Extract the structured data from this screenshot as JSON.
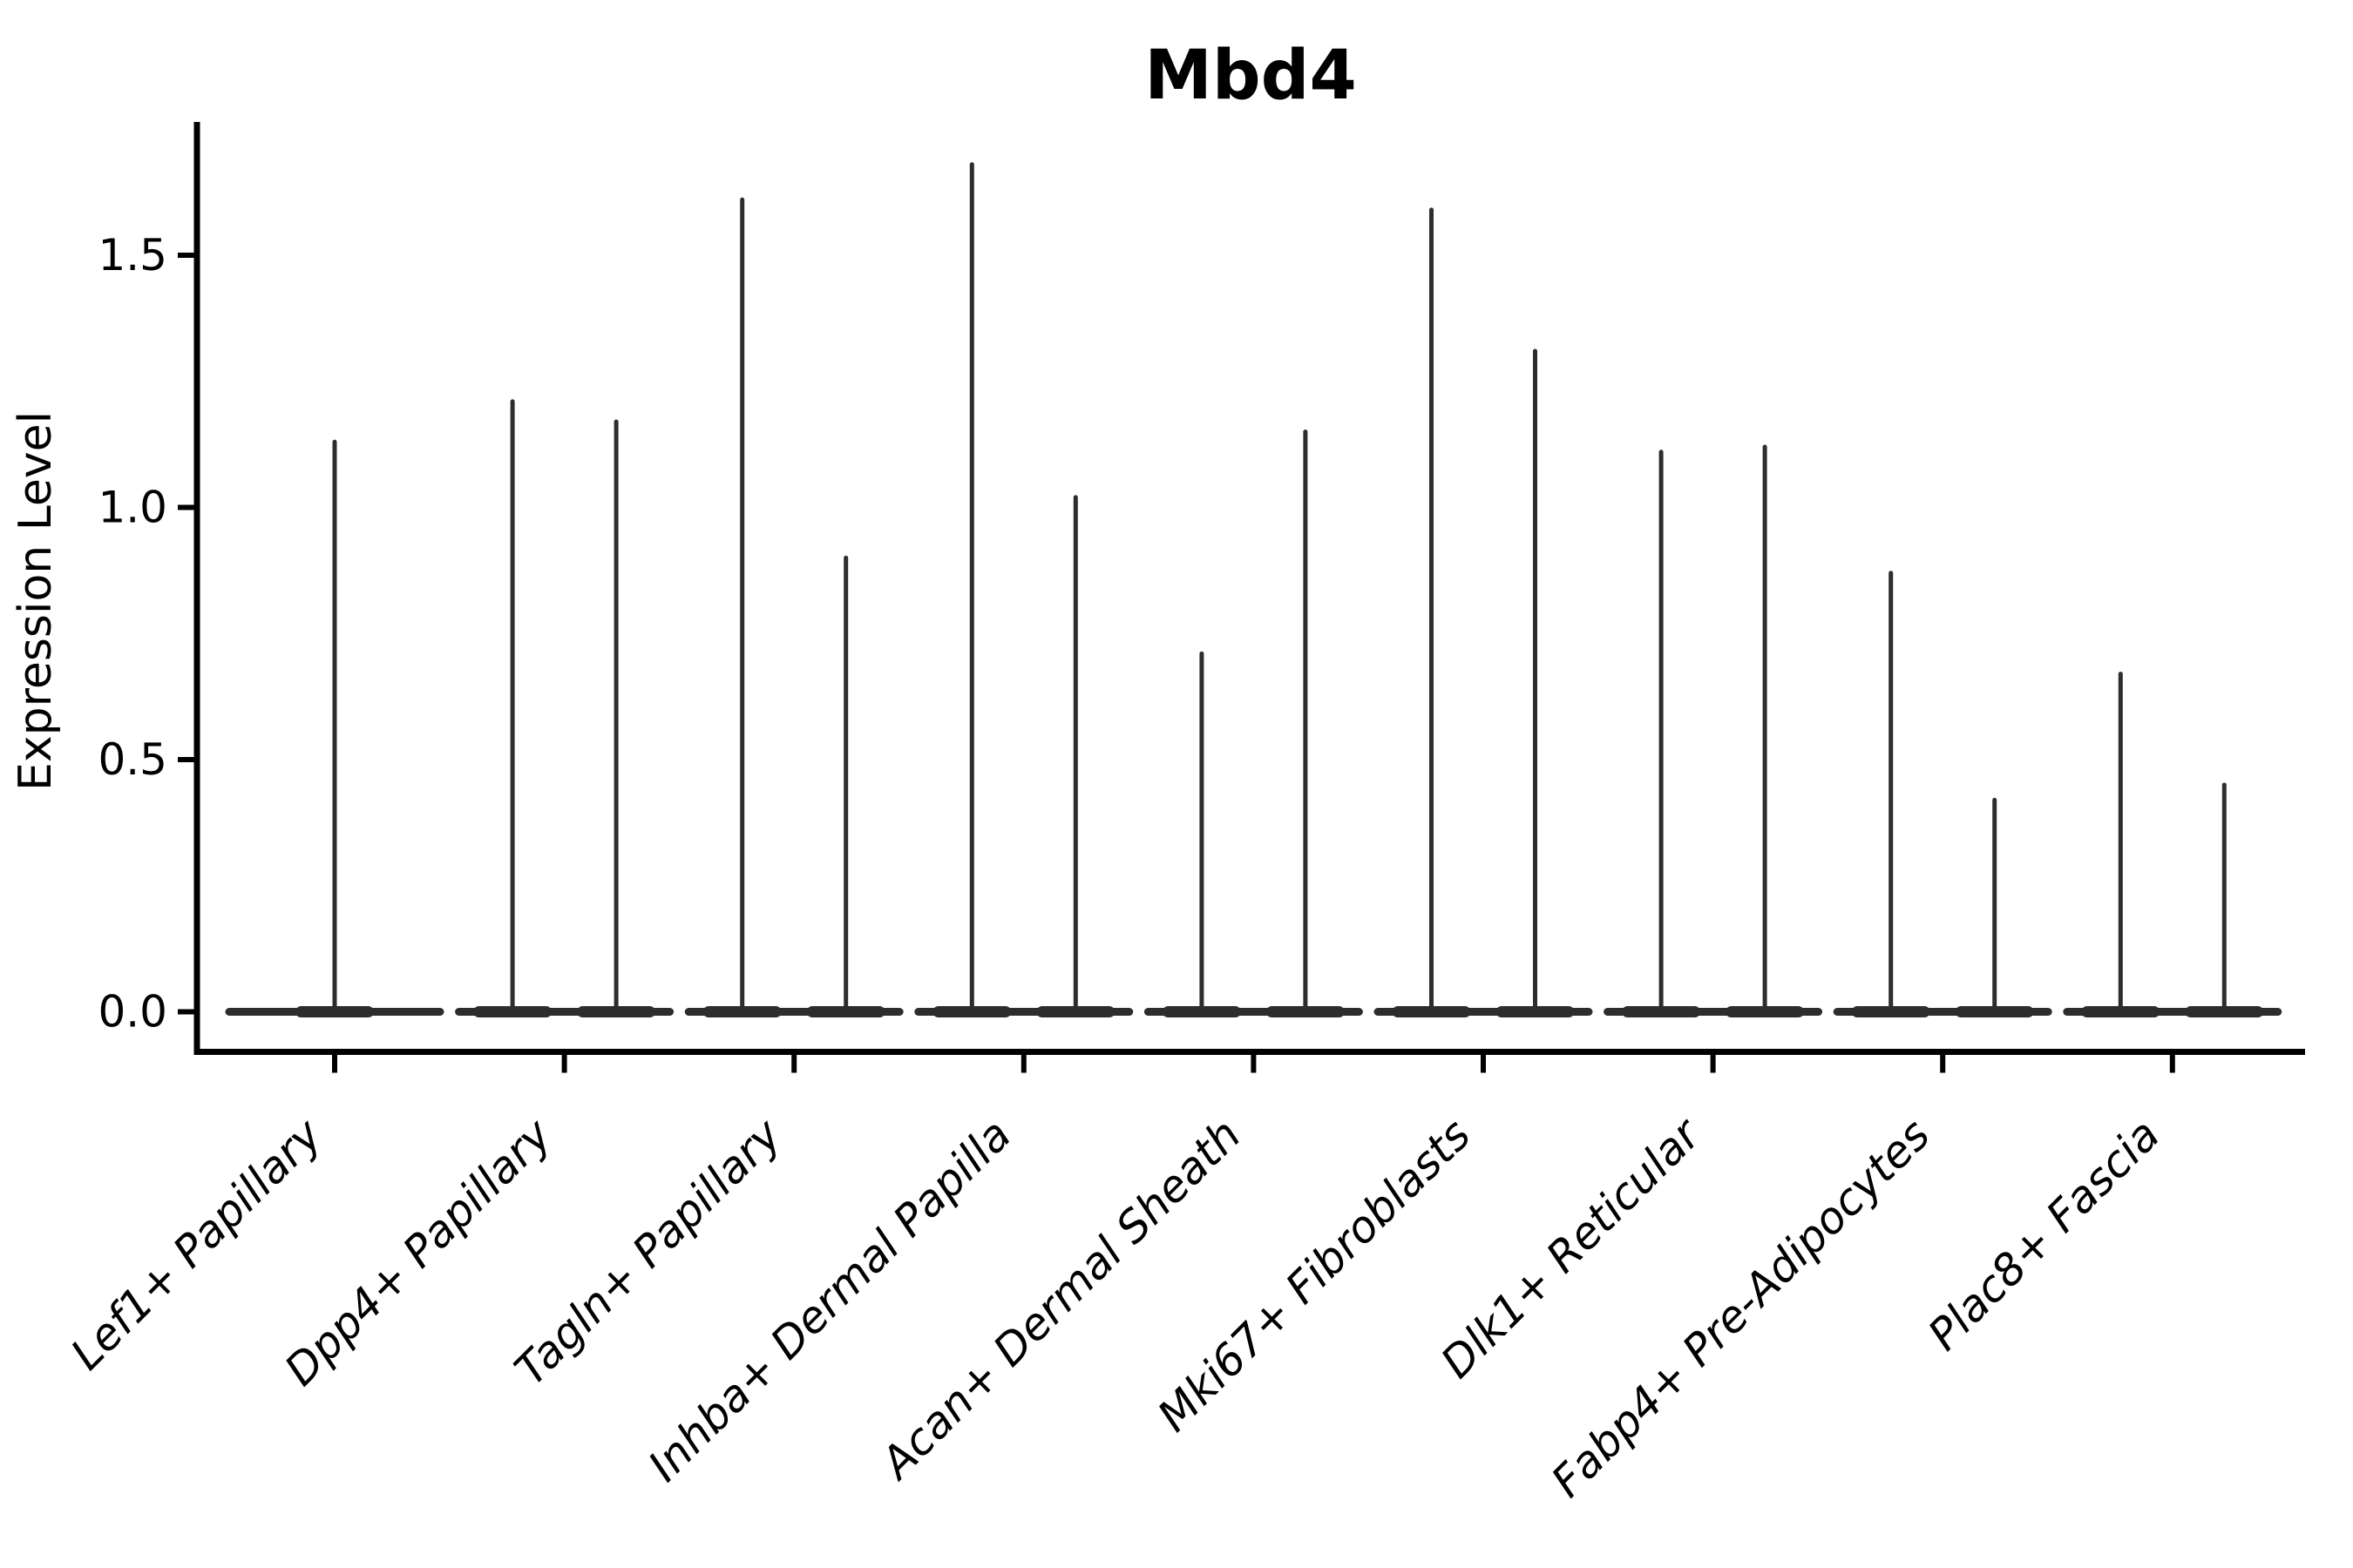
{
  "chart_data": {
    "type": "violin",
    "title": "Mbd4",
    "xlabel": "",
    "ylabel": "Expression Level",
    "yticks": [
      0.0,
      0.5,
      1.0,
      1.5
    ],
    "ylim": [
      0,
      1.75
    ],
    "grid": false,
    "legend": "none",
    "baseline_value": 0.0,
    "categories": [
      "Lef1+ Papillary",
      "Dpp4+ Papillary",
      "Tagln+ Papillary",
      "Inhba+ Dermal Papilla",
      "Acan+ Dermal Sheath",
      "Mki67+ Fibroblasts",
      "Dlk1+ Reticular",
      "Fabp4+ Pre-Adipocytes",
      "Plac8+ Fascia"
    ],
    "violin_peak_expression_per_category": [
      [
        1.13
      ],
      [
        1.21,
        1.17
      ],
      [
        1.61,
        0.9
      ],
      [
        1.68,
        1.02
      ],
      [
        0.71,
        1.15
      ],
      [
        1.59,
        1.31
      ],
      [
        1.11,
        1.12
      ],
      [
        0.87,
        0.42
      ],
      [
        0.67,
        0.45
      ]
    ],
    "violin_color": "#2d2d2d",
    "axis_color": "#000000",
    "background_color": "#ffffff"
  }
}
